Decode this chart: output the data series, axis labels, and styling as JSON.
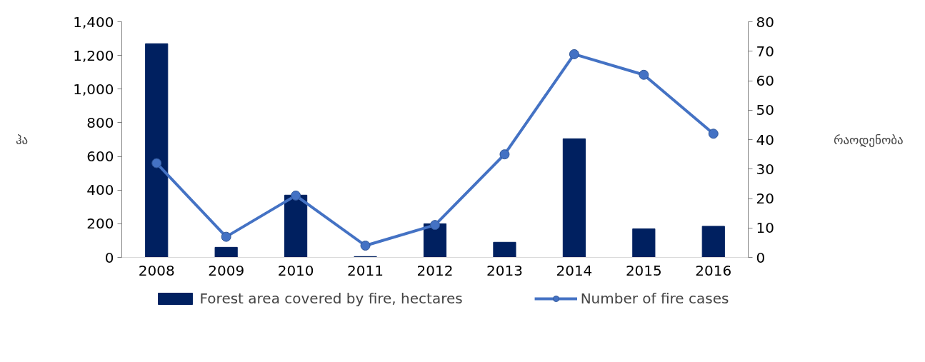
{
  "chart_data": {
    "type": "bar",
    "categories": [
      "2008",
      "2009",
      "2010",
      "2011",
      "2012",
      "2013",
      "2014",
      "2015",
      "2016"
    ],
    "ylabel": "ჰა",
    "y2label": "რაოდენობა",
    "series": [
      {
        "name": "Forest area covered by fire, hectares",
        "color": "#002060",
        "values": [
          1270,
          60,
          370,
          5,
          200,
          90,
          705,
          170,
          185
        ]
      },
      {
        "name": "Number of fire cases",
        "type": "line",
        "axis": "y2",
        "color": "#4472c4",
        "marker": "circle",
        "values": [
          32,
          7,
          21,
          4,
          11,
          35,
          69,
          62,
          42
        ]
      }
    ],
    "ylim": [
      0,
      1400
    ],
    "yticks": [
      {
        "value": 0,
        "label": "0"
      },
      {
        "value": 200,
        "label": "200"
      },
      {
        "value": 400,
        "label": "400"
      },
      {
        "value": 600,
        "label": "600"
      },
      {
        "value": 800,
        "label": "800"
      },
      {
        "value": 1000,
        "label": "1,000"
      },
      {
        "value": 1200,
        "label": "1,200"
      },
      {
        "value": 1400,
        "label": "1,400"
      }
    ],
    "y2lim": [
      0,
      80
    ],
    "y2ticks": [
      0,
      10,
      20,
      30,
      40,
      50,
      60,
      70,
      80
    ],
    "grid": false,
    "legend": "bottom"
  }
}
